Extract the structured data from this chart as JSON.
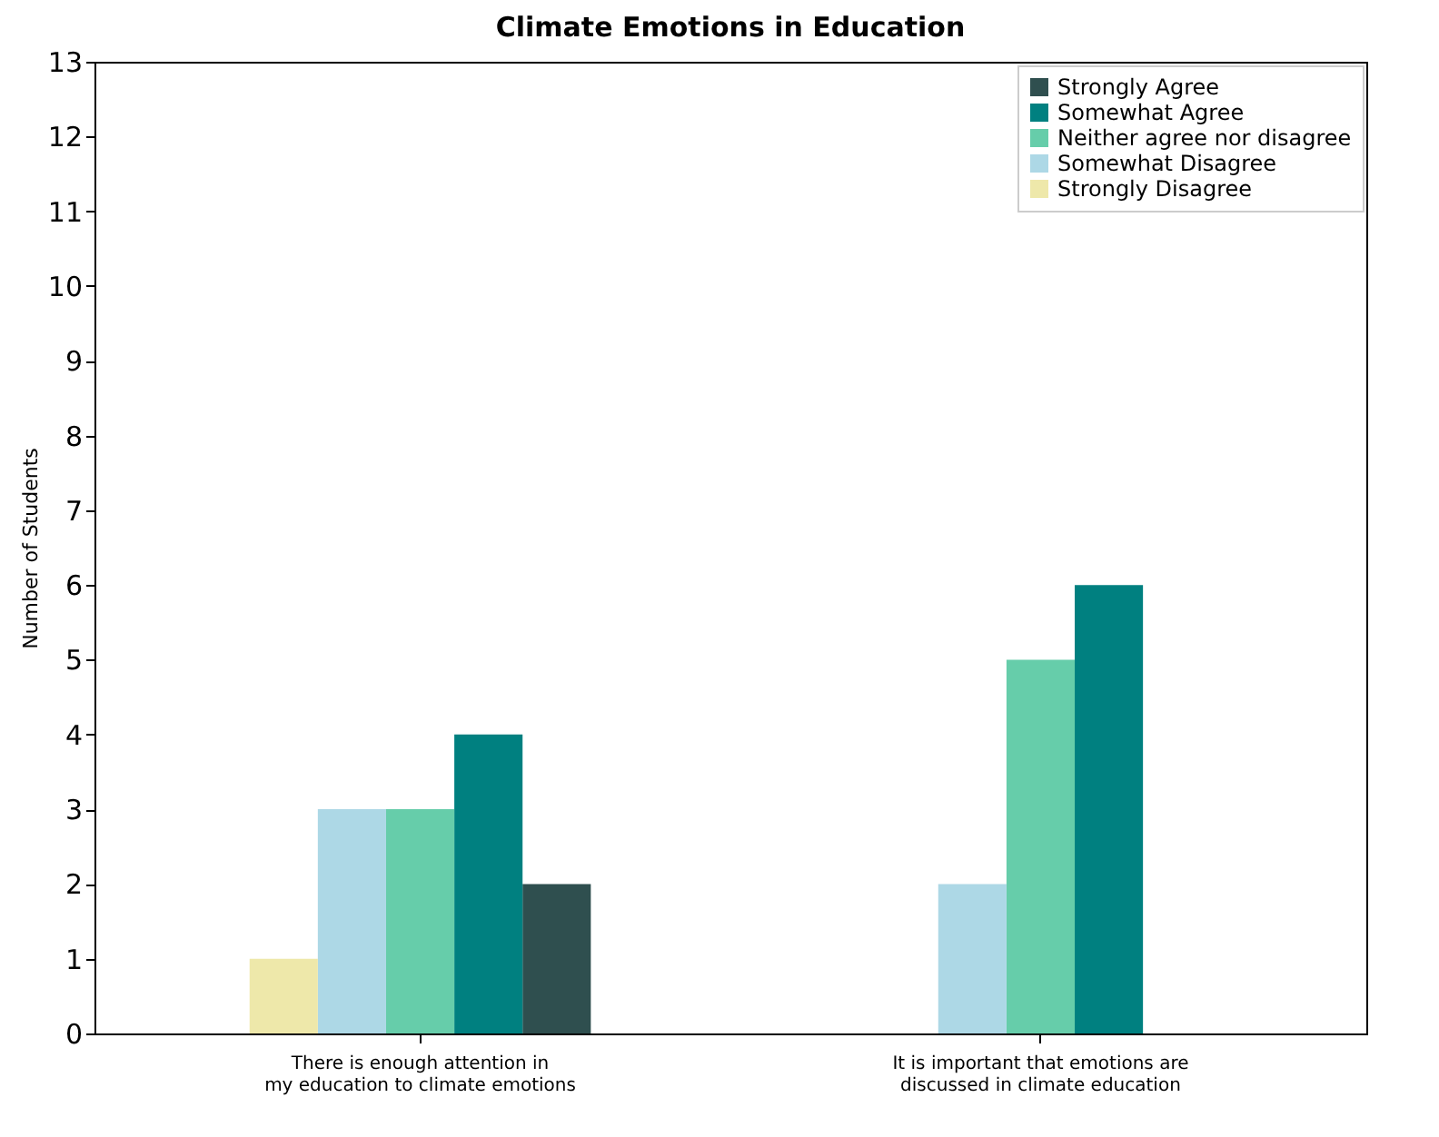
{
  "chart_data": {
    "type": "bar",
    "title": "Climate Emotions in Education",
    "ylabel": "Number of Students",
    "categories": [
      "There is enough attention in\nmy education to climate emotions",
      "It is important that emotions are\ndiscussed in climate education"
    ],
    "series": [
      {
        "name": "Strongly Agree",
        "color": "#2f4f4f",
        "values": [
          2,
          0
        ]
      },
      {
        "name": "Somewhat Agree",
        "color": "#008080",
        "values": [
          4,
          6
        ]
      },
      {
        "name": "Neither agree nor disagree",
        "color": "#66cdaa",
        "values": [
          3,
          5
        ]
      },
      {
        "name": "Somewhat Disagree",
        "color": "#add8e6",
        "values": [
          3,
          2
        ]
      },
      {
        "name": "Strongly Disagree",
        "color": "#eee8aa",
        "values": [
          1,
          0
        ]
      }
    ],
    "ylim": [
      0,
      13
    ],
    "yticks": [
      0,
      1,
      2,
      3,
      4,
      5,
      6,
      7,
      8,
      9,
      10,
      11,
      12,
      13
    ],
    "grid": false,
    "legend": "top right"
  }
}
